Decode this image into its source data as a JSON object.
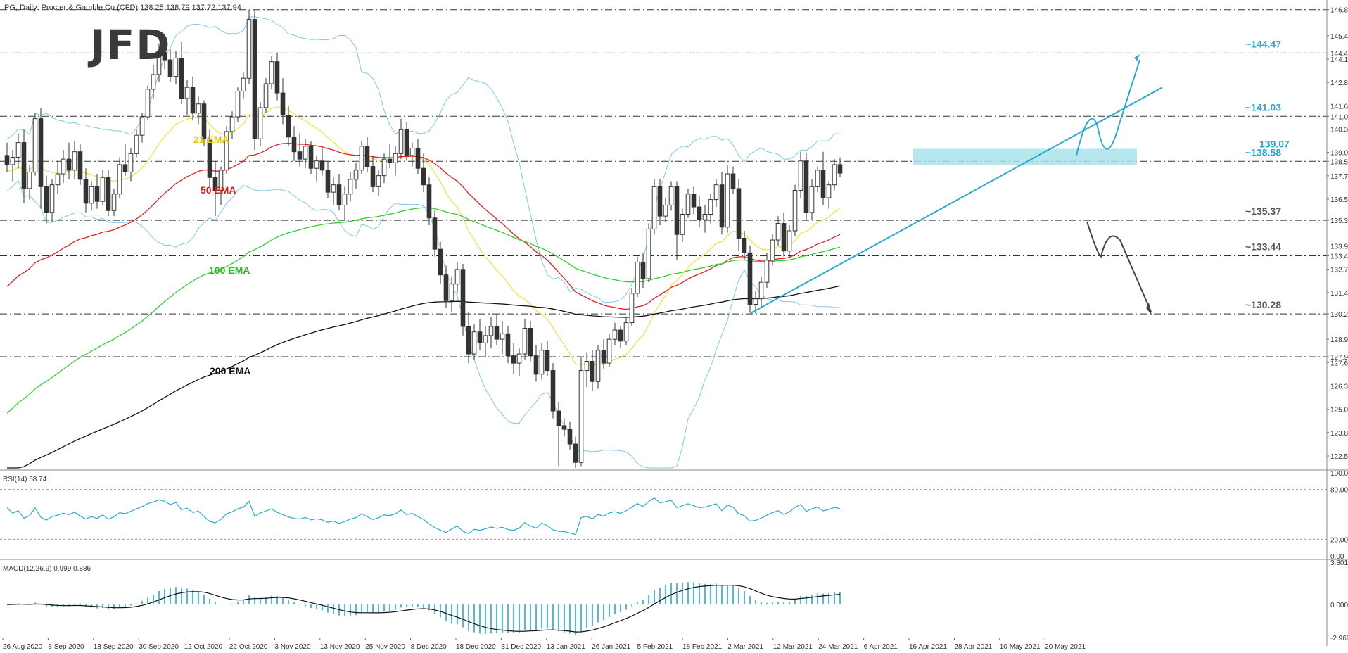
{
  "chart_data": {
    "type": "candlestick",
    "header": "PG, Daily: Procter & Gamble Co (CFD)  138.25 138.79 137.72 137.94",
    "logo": "JFD",
    "price_ticks": [
      "146.83",
      "145.41",
      "144.47",
      "144.14",
      "142.87",
      "141.60",
      "141.03",
      "140.33",
      "139.07",
      "138.58",
      "137.79",
      "136.52",
      "135.37",
      "133.98",
      "133.44",
      "132.71",
      "131.44",
      "130.28",
      "128.90",
      "127.95",
      "127.63",
      "126.36",
      "125.09",
      "123.82",
      "122.55"
    ],
    "price_range": [
      121.9,
      147.05
    ],
    "date_labels": [
      "26 Aug 2020",
      "8 Sep 2020",
      "18 Sep 2020",
      "30 Sep 2020",
      "12 Oct 2020",
      "22 Oct 2020",
      "3 Nov 2020",
      "13 Nov 2020",
      "25 Nov 2020",
      "8 Dec 2020",
      "18 Dec 2020",
      "31 Dec 2020",
      "13 Jan 2021",
      "26 Jan 2021",
      "5 Feb 2021",
      "18 Feb 2021",
      "2 Mar 2021",
      "12 Mar 2021",
      "24 Mar 2021",
      "6 Apr 2021",
      "16 Apr 2021",
      "28 Apr 2021",
      "10 May 2021",
      "20 May 2021"
    ],
    "levels": [
      {
        "value": 144.47,
        "label": "~144.47",
        "color": "#2aa9cf"
      },
      {
        "value": 141.03,
        "label": "~141.03",
        "color": "#2aa9cf"
      },
      {
        "value": 138.58,
        "label": "~138.58",
        "color": "#2aa9cf"
      },
      {
        "value": 135.37,
        "label": "~135.37",
        "color": "#555555"
      },
      {
        "value": 133.44,
        "label": "~133.44",
        "color": "#555555"
      },
      {
        "value": 130.28,
        "label": "~130.28",
        "color": "#555555"
      },
      {
        "value": 127.95,
        "label": "",
        "color": "#555555"
      },
      {
        "value": 146.83,
        "label": "",
        "color": "#555555"
      }
    ],
    "resistance_zone": {
      "low": 138.58,
      "high": 139.07,
      "label": "139.07"
    },
    "ema_labels": [
      {
        "name": "21 EMA",
        "color": "#e8c800"
      },
      {
        "name": "50 EMA",
        "color": "#e02020"
      },
      {
        "name": "100 EMA",
        "color": "#22bb22"
      },
      {
        "name": "200 EMA",
        "color": "#111111"
      }
    ],
    "candles": [
      [
        138.9,
        139.6,
        138.0,
        138.4
      ],
      [
        138.4,
        139.2,
        137.5,
        138.8
      ],
      [
        138.8,
        140.1,
        138.2,
        139.6
      ],
      [
        139.6,
        140.3,
        136.3,
        137.1
      ],
      [
        137.1,
        138.4,
        136.5,
        138.0
      ],
      [
        138.0,
        141.2,
        137.8,
        140.9
      ],
      [
        140.9,
        141.5,
        136.0,
        137.2
      ],
      [
        137.2,
        137.8,
        135.2,
        135.8
      ],
      [
        135.8,
        137.6,
        135.3,
        137.3
      ],
      [
        137.3,
        138.6,
        136.8,
        137.9
      ],
      [
        137.9,
        139.2,
        137.4,
        138.7
      ],
      [
        138.7,
        139.6,
        137.6,
        138.1
      ],
      [
        138.1,
        139.7,
        137.6,
        139.1
      ],
      [
        139.1,
        139.5,
        137.3,
        137.6
      ],
      [
        137.6,
        138.2,
        135.8,
        136.3
      ],
      [
        136.3,
        137.5,
        135.9,
        137.2
      ],
      [
        137.2,
        137.9,
        136.0,
        136.4
      ],
      [
        136.4,
        138.1,
        136.2,
        137.7
      ],
      [
        137.7,
        138.1,
        135.6,
        135.9
      ],
      [
        135.9,
        137.1,
        135.6,
        136.8
      ],
      [
        136.8,
        138.8,
        136.6,
        138.4
      ],
      [
        138.4,
        139.5,
        137.8,
        138.0
      ],
      [
        138.0,
        139.3,
        137.5,
        139.0
      ],
      [
        139.0,
        140.3,
        138.8,
        140.0
      ],
      [
        140.0,
        141.2,
        139.6,
        141.0
      ],
      [
        141.0,
        142.7,
        140.8,
        142.5
      ],
      [
        142.5,
        143.8,
        142.0,
        143.3
      ],
      [
        143.3,
        145.0,
        142.9,
        144.5
      ],
      [
        144.5,
        145.3,
        143.6,
        144.1
      ],
      [
        144.1,
        144.7,
        142.9,
        143.2
      ],
      [
        143.2,
        144.6,
        142.8,
        144.2
      ],
      [
        144.2,
        145.1,
        141.7,
        142.0
      ],
      [
        142.0,
        143.0,
        141.1,
        142.6
      ],
      [
        142.6,
        143.2,
        140.8,
        141.2
      ],
      [
        141.2,
        142.1,
        140.6,
        141.7
      ],
      [
        141.7,
        141.9,
        139.4,
        139.8
      ],
      [
        139.8,
        140.3,
        137.2,
        137.7
      ],
      [
        137.7,
        138.6,
        135.6,
        137.0
      ],
      [
        137.0,
        138.3,
        136.2,
        138.1
      ],
      [
        138.1,
        140.5,
        137.9,
        140.2
      ],
      [
        140.2,
        141.3,
        139.8,
        141.0
      ],
      [
        141.0,
        142.6,
        140.7,
        142.4
      ],
      [
        142.4,
        143.4,
        142.0,
        143.1
      ],
      [
        143.1,
        146.83,
        142.8,
        146.3
      ],
      [
        146.3,
        146.83,
        139.2,
        139.8
      ],
      [
        139.8,
        141.8,
        139.4,
        141.5
      ],
      [
        141.5,
        143.1,
        141.2,
        142.8
      ],
      [
        142.8,
        144.3,
        142.5,
        144.0
      ],
      [
        144.0,
        144.5,
        141.9,
        142.3
      ],
      [
        142.3,
        143.1,
        140.6,
        141.1
      ],
      [
        141.1,
        141.6,
        139.4,
        139.9
      ],
      [
        139.9,
        140.5,
        138.6,
        139.1
      ],
      [
        139.1,
        140.1,
        138.3,
        138.7
      ],
      [
        138.7,
        139.8,
        138.2,
        139.4
      ],
      [
        139.4,
        139.7,
        137.9,
        138.2
      ],
      [
        138.2,
        138.9,
        137.5,
        138.6
      ],
      [
        138.6,
        139.3,
        137.8,
        138.1
      ],
      [
        138.1,
        138.6,
        136.6,
        136.9
      ],
      [
        136.9,
        137.7,
        136.2,
        137.3
      ],
      [
        137.3,
        137.9,
        135.9,
        136.2
      ],
      [
        136.2,
        137.2,
        135.4,
        136.8
      ],
      [
        136.8,
        138.0,
        136.4,
        137.6
      ],
      [
        137.6,
        138.5,
        137.1,
        138.1
      ],
      [
        138.1,
        139.7,
        137.9,
        139.4
      ],
      [
        139.4,
        139.9,
        138.0,
        138.3
      ],
      [
        138.3,
        138.9,
        136.9,
        137.2
      ],
      [
        137.2,
        138.1,
        136.7,
        137.8
      ],
      [
        137.8,
        139.0,
        137.4,
        138.7
      ],
      [
        138.7,
        139.5,
        138.2,
        138.5
      ],
      [
        138.5,
        139.4,
        137.8,
        139.0
      ],
      [
        139.0,
        140.9,
        138.7,
        140.3
      ],
      [
        140.3,
        140.7,
        138.6,
        138.9
      ],
      [
        138.9,
        139.6,
        138.3,
        139.3
      ],
      [
        139.3,
        139.8,
        137.9,
        138.2
      ],
      [
        138.2,
        139.0,
        136.9,
        137.3
      ],
      [
        137.3,
        137.7,
        135.1,
        135.5
      ],
      [
        135.5,
        135.9,
        133.4,
        133.8
      ],
      [
        133.8,
        134.2,
        131.9,
        132.4
      ],
      [
        132.4,
        132.9,
        130.6,
        131.0
      ],
      [
        131.0,
        132.3,
        130.4,
        131.9
      ],
      [
        131.9,
        133.1,
        131.4,
        132.7
      ],
      [
        132.7,
        133.0,
        129.1,
        129.6
      ],
      [
        129.6,
        130.4,
        127.6,
        128.1
      ],
      [
        128.1,
        129.7,
        127.8,
        129.3
      ],
      [
        129.3,
        130.0,
        128.3,
        128.7
      ],
      [
        128.7,
        129.6,
        127.9,
        129.1
      ],
      [
        129.1,
        130.1,
        128.4,
        129.6
      ],
      [
        129.6,
        130.3,
        128.6,
        128.9
      ],
      [
        128.9,
        129.9,
        128.1,
        129.2
      ],
      [
        129.2,
        129.6,
        127.6,
        128.0
      ],
      [
        128.0,
        128.7,
        127.0,
        127.6
      ],
      [
        127.6,
        128.4,
        126.9,
        128.1
      ],
      [
        128.1,
        130.0,
        127.8,
        129.5
      ],
      [
        129.5,
        129.9,
        127.7,
        128.0
      ],
      [
        128.0,
        128.6,
        126.6,
        127.0
      ],
      [
        127.0,
        128.7,
        126.7,
        128.3
      ],
      [
        128.3,
        128.8,
        126.9,
        127.2
      ],
      [
        127.2,
        127.6,
        124.6,
        125.0
      ],
      [
        125.0,
        125.5,
        122.0,
        124.2
      ],
      [
        124.2,
        124.6,
        123.6,
        124.0
      ],
      [
        124.0,
        124.4,
        122.9,
        123.2
      ],
      [
        123.2,
        123.6,
        121.9,
        122.2
      ],
      [
        122.2,
        127.9,
        122.0,
        127.2
      ],
      [
        127.2,
        128.2,
        126.3,
        127.7
      ],
      [
        127.7,
        128.3,
        126.1,
        126.6
      ],
      [
        126.6,
        128.6,
        126.2,
        128.3
      ],
      [
        128.3,
        128.9,
        127.3,
        127.6
      ],
      [
        127.6,
        129.2,
        127.4,
        128.9
      ],
      [
        128.9,
        129.8,
        128.6,
        129.4
      ],
      [
        129.4,
        129.6,
        128.4,
        128.8
      ],
      [
        128.8,
        130.1,
        128.6,
        129.8
      ],
      [
        129.8,
        131.7,
        129.6,
        131.4
      ],
      [
        131.4,
        133.4,
        131.2,
        133.1
      ],
      [
        133.1,
        133.6,
        131.7,
        132.2
      ],
      [
        132.2,
        135.2,
        132.0,
        134.9
      ],
      [
        134.9,
        137.6,
        134.6,
        137.2
      ],
      [
        137.2,
        137.6,
        135.1,
        135.6
      ],
      [
        135.6,
        136.6,
        135.3,
        136.2
      ],
      [
        136.2,
        137.5,
        135.9,
        137.2
      ],
      [
        137.2,
        137.5,
        133.2,
        134.6
      ],
      [
        134.6,
        136.0,
        134.2,
        135.7
      ],
      [
        135.7,
        137.1,
        135.5,
        136.8
      ],
      [
        136.8,
        137.2,
        135.7,
        136.1
      ],
      [
        136.1,
        136.7,
        135.0,
        135.4
      ],
      [
        135.4,
        136.2,
        134.7,
        135.7
      ],
      [
        135.7,
        136.8,
        135.2,
        136.5
      ],
      [
        136.5,
        137.6,
        136.1,
        137.3
      ],
      [
        137.3,
        138.0,
        134.6,
        135.0
      ],
      [
        135.0,
        138.4,
        134.7,
        137.9
      ],
      [
        137.9,
        138.3,
        136.8,
        137.1
      ],
      [
        137.1,
        137.6,
        133.7,
        134.4
      ],
      [
        134.4,
        134.8,
        133.2,
        133.6
      ],
      [
        133.6,
        134.0,
        130.4,
        130.8
      ],
      [
        130.8,
        131.5,
        130.3,
        131.1
      ],
      [
        131.1,
        132.3,
        130.6,
        132.0
      ],
      [
        132.0,
        133.6,
        131.7,
        133.2
      ],
      [
        133.2,
        134.6,
        132.9,
        134.3
      ],
      [
        134.3,
        135.6,
        134.0,
        135.2
      ],
      [
        135.2,
        135.8,
        133.4,
        133.7
      ],
      [
        133.7,
        135.1,
        133.3,
        134.8
      ],
      [
        134.8,
        137.3,
        134.5,
        137.0
      ],
      [
        137.0,
        139.1,
        136.6,
        138.6
      ],
      [
        138.6,
        139.0,
        135.4,
        135.8
      ],
      [
        135.8,
        137.6,
        135.4,
        137.2
      ],
      [
        137.2,
        138.3,
        136.9,
        138.1
      ],
      [
        138.1,
        139.1,
        136.2,
        136.6
      ],
      [
        136.6,
        137.5,
        136.0,
        137.3
      ],
      [
        137.3,
        138.7,
        137.0,
        138.4
      ],
      [
        138.4,
        138.79,
        137.72,
        137.94
      ]
    ]
  }
}
